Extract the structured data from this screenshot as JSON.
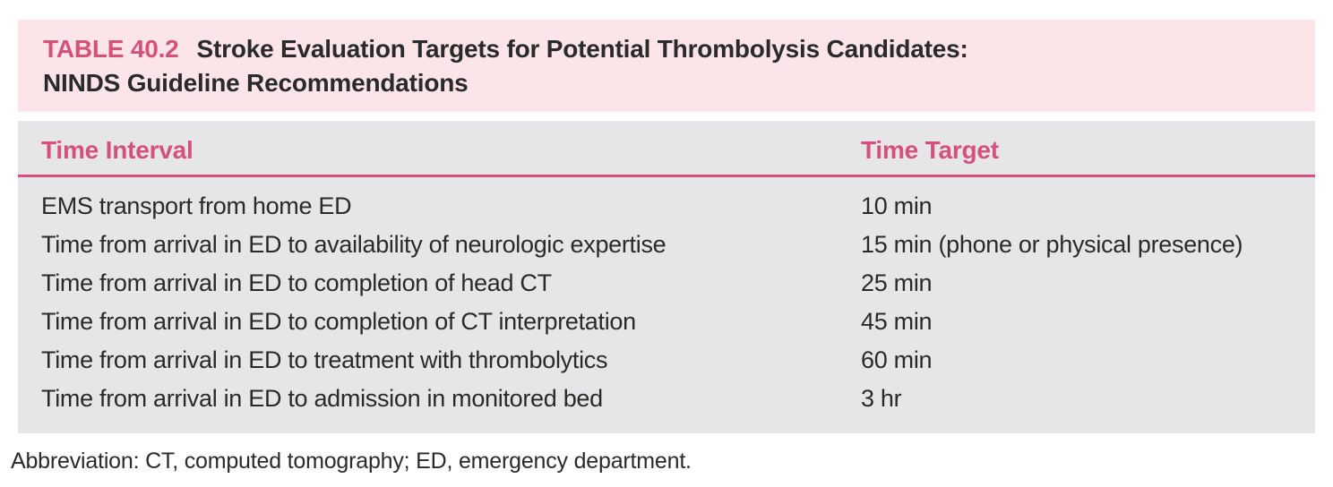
{
  "table": {
    "number_label": "TABLE 40.2",
    "title_line1": "Stroke Evaluation Targets for Potential Thrombolysis Candidates:",
    "title_line2": "NINDS Guideline Recommendations",
    "columns": {
      "interval": "Time Interval",
      "target": "Time Target"
    },
    "rows": [
      {
        "interval": "EMS transport from home ED",
        "target": "10 min"
      },
      {
        "interval": "Time from arrival in ED to availability of neurologic expertise",
        "target": "15 min (phone or physical presence)"
      },
      {
        "interval": "Time from arrival in ED to completion of head CT",
        "target": "25 min"
      },
      {
        "interval": "Time from arrival in ED to completion of CT interpretation",
        "target": "45 min"
      },
      {
        "interval": "Time from arrival in ED to treatment with thrombolytics",
        "target": "60 min"
      },
      {
        "interval": "Time from arrival in ED to admission in monitored bed",
        "target": "3 hr"
      }
    ],
    "footnote": "Abbreviation: CT, computed tomography; ED, emergency department."
  },
  "colors": {
    "accent_pink": "#d5517b",
    "title_bg": "#fbe5e9",
    "body_bg": "#e6e6e8",
    "text": "#2b2a2a",
    "page_bg": "#ffffff"
  }
}
